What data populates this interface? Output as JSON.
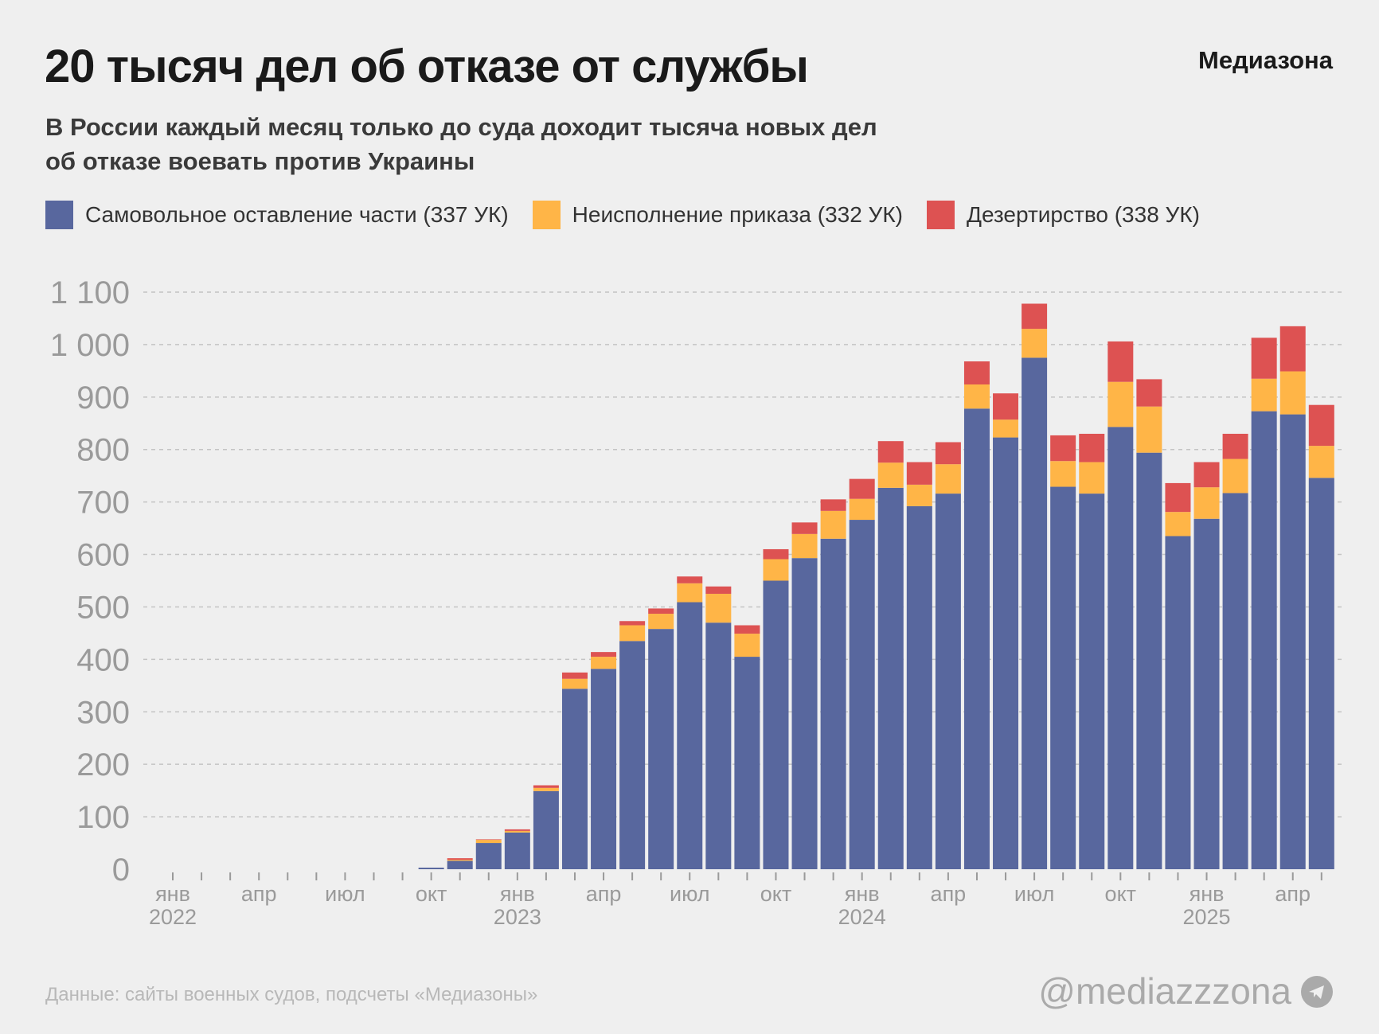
{
  "header": {
    "title": "20 тысяч дел об отказе от службы",
    "logo": "Медиазона",
    "subtitle_line1": "В России каждый месяц только до суда доходит тысяча новых дел",
    "subtitle_line2": "об отказе воевать против Украины"
  },
  "footer": {
    "source": "Данные: сайты военных судов, подсчеты «Медиазоны»",
    "handle": "@mediazzzona",
    "handle_icon": "telegram-icon"
  },
  "chart_data": {
    "type": "bar",
    "stacked": true,
    "grid": true,
    "legend_position": "top-left",
    "ylim": [
      0,
      1100
    ],
    "yticks": [
      0,
      100,
      200,
      300,
      400,
      500,
      600,
      700,
      800,
      900,
      1000,
      1100
    ],
    "ytick_labels": [
      "0",
      "100",
      "200",
      "300",
      "400",
      "500",
      "600",
      "700",
      "800",
      "900",
      "1 000",
      "1 100"
    ],
    "categories": [
      "2022-01",
      "2022-02",
      "2022-03",
      "2022-04",
      "2022-05",
      "2022-06",
      "2022-07",
      "2022-08",
      "2022-09",
      "2022-10",
      "2022-11",
      "2022-12",
      "2023-01",
      "2023-02",
      "2023-03",
      "2023-04",
      "2023-05",
      "2023-06",
      "2023-07",
      "2023-08",
      "2023-09",
      "2023-10",
      "2023-11",
      "2023-12",
      "2024-01",
      "2024-02",
      "2024-03",
      "2024-04",
      "2024-05",
      "2024-06",
      "2024-07",
      "2024-08",
      "2024-09",
      "2024-10",
      "2024-11",
      "2024-12",
      "2025-01",
      "2025-02",
      "2025-03",
      "2025-04",
      "2025-05"
    ],
    "xtick_labels": [
      {
        "month": "янв",
        "year": "2022",
        "index": 0
      },
      {
        "month": "апр",
        "index": 3
      },
      {
        "month": "июл",
        "index": 6
      },
      {
        "month": "окт",
        "index": 9
      },
      {
        "month": "янв",
        "year": "2023",
        "index": 12
      },
      {
        "month": "апр",
        "index": 15
      },
      {
        "month": "июл",
        "index": 18
      },
      {
        "month": "окт",
        "index": 21
      },
      {
        "month": "янв",
        "year": "2024",
        "index": 24
      },
      {
        "month": "апр",
        "index": 27
      },
      {
        "month": "июл",
        "index": 30
      },
      {
        "month": "окт",
        "index": 33
      },
      {
        "month": "янв",
        "year": "2025",
        "index": 36
      },
      {
        "month": "апр",
        "index": 39
      }
    ],
    "series": [
      {
        "name": "Самовольное оставление части (337 УК)",
        "color": "#58679e",
        "values": [
          0,
          0,
          0,
          0,
          0,
          0,
          0,
          0,
          0,
          3,
          16,
          50,
          70,
          149,
          344,
          382,
          435,
          458,
          509,
          470,
          405,
          550,
          593,
          630,
          666,
          727,
          692,
          716,
          878,
          823,
          975,
          729,
          716,
          843,
          794,
          635,
          668,
          717,
          873,
          867,
          746
        ]
      },
      {
        "name": "Неисполнение приказа (332 УК)",
        "color": "#ffb547",
        "values": [
          0,
          0,
          0,
          0,
          0,
          0,
          0,
          0,
          0,
          0,
          2,
          6,
          3,
          6,
          19,
          23,
          30,
          29,
          36,
          55,
          44,
          41,
          46,
          53,
          40,
          48,
          41,
          56,
          46,
          34,
          55,
          49,
          60,
          86,
          88,
          46,
          60,
          65,
          62,
          82,
          61
        ]
      },
      {
        "name": "Дезертирство (338 УК)",
        "color": "#dd5252",
        "values": [
          0,
          0,
          0,
          0,
          0,
          0,
          0,
          0,
          0,
          0,
          3,
          1,
          3,
          5,
          12,
          9,
          8,
          10,
          13,
          14,
          16,
          19,
          22,
          22,
          38,
          41,
          43,
          42,
          44,
          50,
          48,
          49,
          54,
          77,
          52,
          55,
          48,
          48,
          78,
          86,
          78
        ]
      }
    ]
  }
}
